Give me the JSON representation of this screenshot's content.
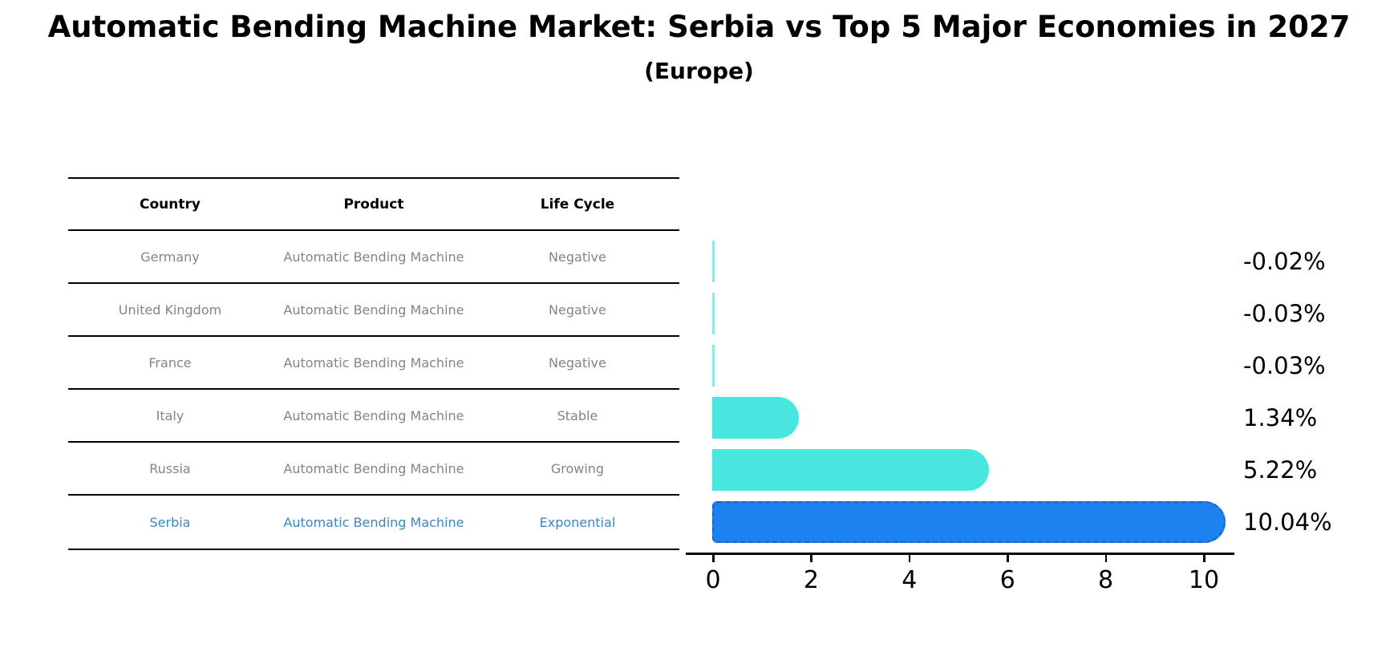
{
  "title": "Automatic Bending Machine Market: Serbia vs Top 5 Major Economies in 2027",
  "subtitle": "(Europe)",
  "table": {
    "columns": [
      "Country",
      "Product",
      "Life Cycle"
    ],
    "rows": [
      {
        "country": "Germany",
        "product": "Automatic Bending Machine",
        "life_cycle": "Negative",
        "highlight": false
      },
      {
        "country": "United Kingdom",
        "product": "Automatic Bending Machine",
        "life_cycle": "Negative",
        "highlight": false
      },
      {
        "country": "France",
        "product": "Automatic Bending Machine",
        "life_cycle": "Negative",
        "highlight": false
      },
      {
        "country": "Italy",
        "product": "Automatic Bending Machine",
        "life_cycle": "Stable",
        "highlight": false
      },
      {
        "country": "Russia",
        "product": "Automatic Bending Machine",
        "life_cycle": "Growing",
        "highlight": false
      },
      {
        "country": "Serbia",
        "product": "Automatic Bending Machine",
        "life_cycle": "Exponential",
        "highlight": true
      }
    ]
  },
  "chart_data": {
    "type": "bar",
    "orientation": "horizontal",
    "title": "Automatic Bending Machine Market: Serbia vs Top 5 Major Economies in 2027 (Europe)",
    "categories": [
      "Germany",
      "United Kingdom",
      "France",
      "Italy",
      "Russia",
      "Serbia"
    ],
    "values": [
      -0.02,
      -0.03,
      -0.03,
      1.34,
      5.22,
      10.04
    ],
    "value_labels": [
      "-0.02%",
      "-0.03%",
      "-0.03%",
      "1.34%",
      "5.22%",
      "10.04%"
    ],
    "x_ticks": [
      0,
      2,
      4,
      6,
      8,
      10
    ],
    "xlim": [
      0,
      11
    ],
    "xlabel": "",
    "ylabel": "",
    "grid": false,
    "legend": "none",
    "highlight_category": "Serbia"
  },
  "colors": {
    "bar_default": "#47E6DF",
    "bar_negative_sliver": "#8FE9E6",
    "bar_highlight": "#1B82F0",
    "bar_highlight_border": "#1E5FC2",
    "table_text": "#848484",
    "table_highlight_text": "#3A87C4",
    "axis_text": "#000000"
  }
}
